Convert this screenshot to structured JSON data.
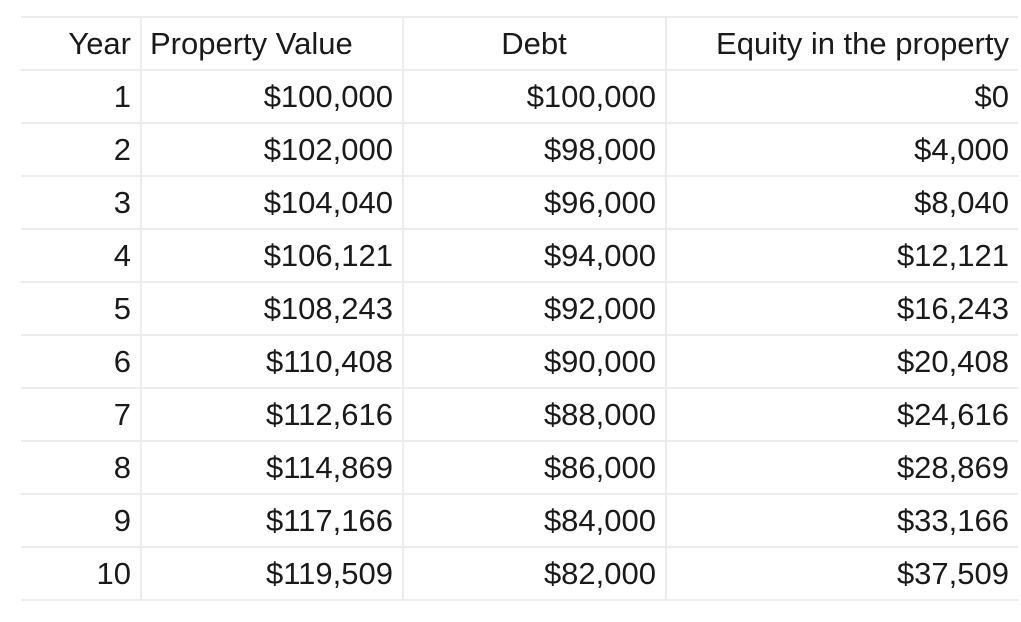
{
  "table": {
    "headers": [
      "Year",
      "Property Value",
      "Debt",
      "Equity in the property"
    ],
    "rows": [
      [
        "1",
        "$100,000",
        "$100,000",
        "$0"
      ],
      [
        "2",
        "$102,000",
        "$98,000",
        "$4,000"
      ],
      [
        "3",
        "$104,040",
        "$96,000",
        "$8,040"
      ],
      [
        "4",
        "$106,121",
        "$94,000",
        "$12,121"
      ],
      [
        "5",
        "$108,243",
        "$92,000",
        "$16,243"
      ],
      [
        "6",
        "$110,408",
        "$90,000",
        "$20,408"
      ],
      [
        "7",
        "$112,616",
        "$88,000",
        "$24,616"
      ],
      [
        "8",
        "$114,869",
        "$86,000",
        "$28,869"
      ],
      [
        "9",
        "$117,166",
        "$84,000",
        "$33,166"
      ],
      [
        "10",
        "$119,509",
        "$82,000",
        "$37,509"
      ]
    ]
  },
  "colors": {
    "text": "#1a1a1a",
    "grid": "#ececec",
    "background": "#ffffff"
  }
}
